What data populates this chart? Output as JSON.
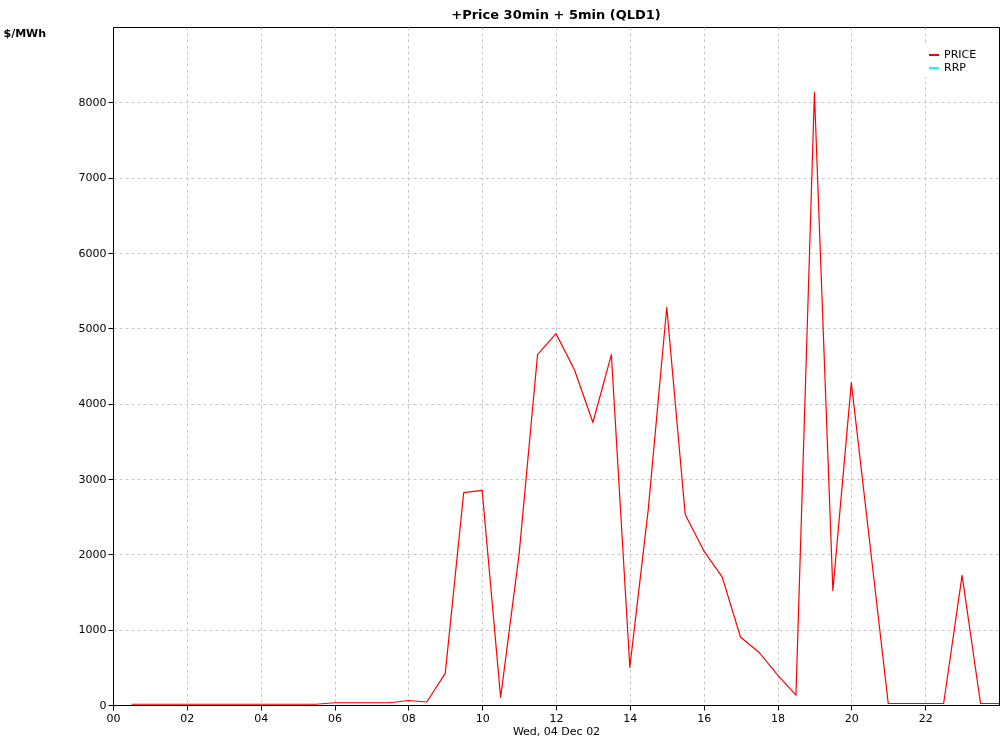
{
  "chart_data": {
    "type": "line",
    "title": "+Price 30min + 5min (QLD1)",
    "xlabel": "Wed, 04 Dec 02",
    "ylabel": "$/MWh",
    "x": [
      0.5,
      1,
      1.5,
      2,
      2.5,
      3,
      3.5,
      4,
      4.5,
      5,
      5.5,
      6,
      6.5,
      7,
      7.5,
      8,
      8.5,
      9,
      9.5,
      10,
      10.5,
      11,
      11.5,
      12,
      12.5,
      13,
      13.5,
      14,
      14.5,
      15,
      15.5,
      16,
      16.5,
      17,
      17.5,
      18,
      18.5,
      19,
      19.5,
      20,
      20.5,
      21,
      21.5,
      22,
      22.5,
      23,
      23.5,
      24
    ],
    "series": [
      {
        "name": "PRICE",
        "color": "#ff0000",
        "values": [
          10,
          10,
          10,
          10,
          10,
          10,
          10,
          10,
          10,
          10,
          10,
          30,
          30,
          30,
          30,
          60,
          40,
          420,
          2820,
          2850,
          100,
          2000,
          4650,
          4930,
          4450,
          3750,
          4650,
          500,
          2600,
          5280,
          2530,
          2050,
          1700,
          900,
          700,
          400,
          130,
          8130,
          1520,
          4280,
          2150,
          20,
          20,
          20,
          20,
          1720,
          20,
          20
        ]
      },
      {
        "name": "RRP",
        "color": "#00ffff",
        "values": [
          null,
          null,
          null,
          null,
          null,
          null,
          null,
          null,
          null,
          null,
          null,
          null,
          null,
          null,
          null,
          null,
          null,
          null,
          null,
          null,
          null,
          null,
          null,
          null,
          null,
          null,
          null,
          null,
          null,
          null,
          null,
          null,
          null,
          null,
          null,
          null,
          null,
          null,
          null,
          null,
          null,
          null,
          null,
          null,
          null,
          null,
          null,
          null
        ]
      }
    ],
    "xlim": [
      0,
      24
    ],
    "xticks": [
      {
        "value": 0,
        "label": "00"
      },
      {
        "value": 2,
        "label": "02"
      },
      {
        "value": 4,
        "label": "04"
      },
      {
        "value": 6,
        "label": "06"
      },
      {
        "value": 8,
        "label": "08"
      },
      {
        "value": 10,
        "label": "10"
      },
      {
        "value": 12,
        "label": "12"
      },
      {
        "value": 14,
        "label": "14"
      },
      {
        "value": 16,
        "label": "16"
      },
      {
        "value": 18,
        "label": "18"
      },
      {
        "value": 20,
        "label": "20"
      },
      {
        "value": 22,
        "label": "22"
      }
    ],
    "ylim": [
      0,
      9000
    ],
    "yticks": [
      0,
      1000,
      2000,
      3000,
      4000,
      5000,
      6000,
      7000,
      8000
    ],
    "grid": true,
    "legend": "top right",
    "marker": "none",
    "line_style": "solid"
  }
}
